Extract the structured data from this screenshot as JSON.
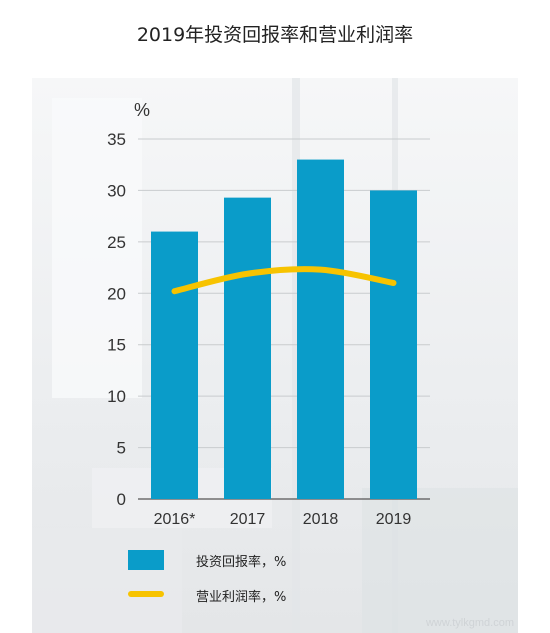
{
  "title": "2019年投资回报率和营业利润率",
  "watermark": "www.tylkgmd.com",
  "chart_data": {
    "type": "bar",
    "categories": [
      "2016*",
      "2017",
      "2018",
      "2019"
    ],
    "series": [
      {
        "name": "投资回报率，%",
        "type": "bar",
        "values": [
          26.0,
          29.3,
          33.0,
          30.0
        ],
        "color": "#0a9cc9"
      },
      {
        "name": "营业利润率，%",
        "type": "line",
        "values": [
          20.2,
          21.9,
          22.3,
          21.0
        ],
        "color": "#f7c300"
      }
    ],
    "ylabel": "%",
    "yticks": [
      0,
      5,
      10,
      15,
      20,
      25,
      30,
      35
    ],
    "ylim": [
      0,
      35
    ],
    "grid": true,
    "legend_position": "bottom"
  }
}
